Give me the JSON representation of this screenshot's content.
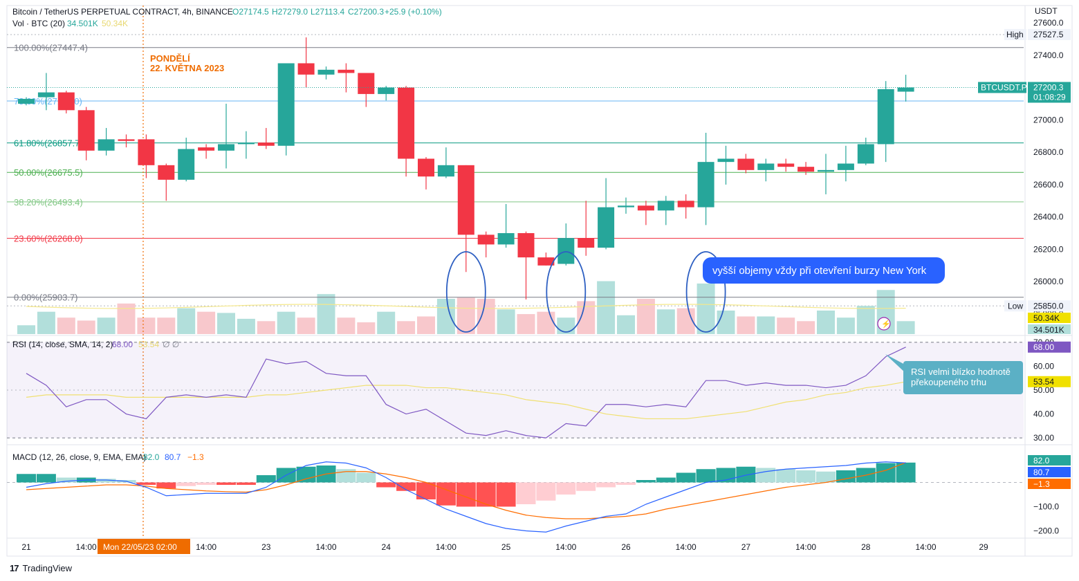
{
  "header": {
    "symbol_line": "Bitcoin / TetherUS PERPETUAL CONTRACT, 4h, BINANCE",
    "o": "O27174.5",
    "h": "H27279.0",
    "l": "L27113.4",
    "c": "C27200.3",
    "change": "+25.9 (+0.10%)",
    "vol_label": "Vol · BTC (20)",
    "vol_v1": "34.501K",
    "vol_v2": "50.34K",
    "rsi_label": "RSI (14, close, SMA, 14, 2)",
    "rsi_v1": "68.00",
    "rsi_v2": "53.54",
    "rsi_null": "∅  ∅",
    "macd_label": "MACD (12, 26, close, 9, EMA, EMA)",
    "macd_v1": "82.0",
    "macd_v2": "80.7",
    "macd_v3": "−1.3"
  },
  "footer": {
    "brand": "TradingView",
    "logo": "17"
  },
  "colors": {
    "up": "#26a69a",
    "down": "#f23645",
    "upVol": "#b2dfdb",
    "downVol": "#f8c8cc",
    "rsiLine": "#7e57c2",
    "rsiMa": "#f0e070",
    "macdLine": "#2962ff",
    "macdSignal": "#ff6d00",
    "accent": "#ef6c00"
  },
  "chart_data": {
    "type": "candlestick",
    "timeframe": "4h",
    "price_axis": {
      "unit": "USDT",
      "ylim": [
        25800,
        27600
      ],
      "ticks": [
        25800,
        26000,
        26200,
        26400,
        26600,
        26800,
        27000,
        27200,
        27400,
        27600
      ]
    },
    "candles": [
      {
        "o": 27100,
        "h": 27140,
        "l": 27090,
        "c": 27130
      },
      {
        "o": 27140,
        "h": 27290,
        "l": 27060,
        "c": 27170
      },
      {
        "o": 27170,
        "h": 27180,
        "l": 27040,
        "c": 27060
      },
      {
        "o": 27060,
        "h": 27080,
        "l": 26750,
        "c": 26810
      },
      {
        "o": 26810,
        "h": 26950,
        "l": 26780,
        "c": 26880
      },
      {
        "o": 26880,
        "h": 26910,
        "l": 26830,
        "c": 26870
      },
      {
        "o": 26880,
        "h": 26910,
        "l": 26640,
        "c": 26720
      },
      {
        "o": 26720,
        "h": 26730,
        "l": 26500,
        "c": 26630
      },
      {
        "o": 26630,
        "h": 26890,
        "l": 26620,
        "c": 26820
      },
      {
        "o": 26830,
        "h": 26850,
        "l": 26760,
        "c": 26810
      },
      {
        "o": 26810,
        "h": 27100,
        "l": 26700,
        "c": 26850
      },
      {
        "o": 26850,
        "h": 26930,
        "l": 26760,
        "c": 26860
      },
      {
        "o": 26860,
        "h": 26950,
        "l": 26820,
        "c": 26840
      },
      {
        "o": 26840,
        "h": 27340,
        "l": 26780,
        "c": 27350
      },
      {
        "o": 27350,
        "h": 27510,
        "l": 27200,
        "c": 27280
      },
      {
        "o": 27280,
        "h": 27330,
        "l": 27250,
        "c": 27310
      },
      {
        "o": 27310,
        "h": 27350,
        "l": 27170,
        "c": 27290
      },
      {
        "o": 27290,
        "h": 27290,
        "l": 27080,
        "c": 27160
      },
      {
        "o": 27160,
        "h": 27210,
        "l": 27120,
        "c": 27200
      },
      {
        "o": 27200,
        "h": 27210,
        "l": 26650,
        "c": 26760
      },
      {
        "o": 26760,
        "h": 26770,
        "l": 26570,
        "c": 26650
      },
      {
        "o": 26650,
        "h": 26830,
        "l": 26640,
        "c": 26720
      },
      {
        "o": 26720,
        "h": 26720,
        "l": 26060,
        "c": 26290
      },
      {
        "o": 26290,
        "h": 26310,
        "l": 26150,
        "c": 26230
      },
      {
        "o": 26230,
        "h": 26480,
        "l": 26210,
        "c": 26300
      },
      {
        "o": 26300,
        "h": 26310,
        "l": 25890,
        "c": 26150
      },
      {
        "o": 26150,
        "h": 26180,
        "l": 26100,
        "c": 26100
      },
      {
        "o": 26110,
        "h": 26360,
        "l": 26100,
        "c": 26270
      },
      {
        "o": 26270,
        "h": 26500,
        "l": 26160,
        "c": 26210
      },
      {
        "o": 26210,
        "h": 26640,
        "l": 26200,
        "c": 26460
      },
      {
        "o": 26460,
        "h": 26520,
        "l": 26420,
        "c": 26470
      },
      {
        "o": 26470,
        "h": 26500,
        "l": 26350,
        "c": 26440
      },
      {
        "o": 26440,
        "h": 26530,
        "l": 26350,
        "c": 26500
      },
      {
        "o": 26500,
        "h": 26540,
        "l": 26390,
        "c": 26460
      },
      {
        "o": 26460,
        "h": 26920,
        "l": 26350,
        "c": 26740
      },
      {
        "o": 26740,
        "h": 26840,
        "l": 26600,
        "c": 26760
      },
      {
        "o": 26760,
        "h": 26790,
        "l": 26670,
        "c": 26690
      },
      {
        "o": 26690,
        "h": 26760,
        "l": 26620,
        "c": 26730
      },
      {
        "o": 26730,
        "h": 26760,
        "l": 26680,
        "c": 26710
      },
      {
        "o": 26710,
        "h": 26740,
        "l": 26660,
        "c": 26680
      },
      {
        "o": 26680,
        "h": 26790,
        "l": 26540,
        "c": 26690
      },
      {
        "o": 26690,
        "h": 26840,
        "l": 26620,
        "c": 26730
      },
      {
        "o": 26730,
        "h": 26890,
        "l": 26720,
        "c": 26850
      },
      {
        "o": 26850,
        "h": 27240,
        "l": 26740,
        "c": 27190
      },
      {
        "o": 27174.5,
        "h": 27279,
        "l": 27113.4,
        "c": 27200.3
      }
    ],
    "volume": {
      "max": 100,
      "values": [
        15,
        38,
        28,
        23,
        28,
        52,
        28,
        28,
        44,
        38,
        36,
        26,
        22,
        38,
        28,
        68,
        28,
        20,
        38,
        22,
        30,
        60,
        62,
        60,
        42,
        34,
        38,
        28,
        56,
        90,
        32,
        60,
        42,
        44,
        86,
        40,
        30,
        30,
        28,
        22,
        40,
        28,
        48,
        75,
        22
      ],
      "highlight_circles": [
        22,
        27,
        34
      ]
    },
    "fibonacci": {
      "levels": [
        {
          "label": "100.00%(27447.4)",
          "price": 27447.4,
          "color": "#787b86"
        },
        {
          "label": "78.60%(27117.0)",
          "price": 27117.0,
          "color": "#64b5f6"
        },
        {
          "label": "61.80%(26857.7)",
          "price": 26857.7,
          "color": "#089981"
        },
        {
          "label": "50.00%(26675.5)",
          "price": 26675.5,
          "color": "#4caf50"
        },
        {
          "label": "38.20%(26493.4)",
          "price": 26493.4,
          "color": "#81c784"
        },
        {
          "label": "23.60%(26268.0)",
          "price": 26268.0,
          "color": "#f23645"
        },
        {
          "label": "0.00%(25903.7)",
          "price": 25903.7,
          "color": "#787b86"
        }
      ]
    },
    "price_tags": [
      {
        "label": "High",
        "value": "27527.5",
        "price": 27527.5
      },
      {
        "label": "Low",
        "value": "25850.0",
        "price": 25850.0
      },
      {
        "label": "BTCUSDT.P",
        "value": "27200.3",
        "sub": "01:08:29",
        "price": 27200.3
      }
    ],
    "volume_tags": [
      "50.34K",
      "34.501K"
    ],
    "date_marker": {
      "line1": "PONDĚLÍ",
      "line2": "22. KVĚTNA 2023",
      "axis_label": "Mon 22/05/23   02:00"
    },
    "x_axis_labels": [
      {
        "text": "21",
        "bar": 0
      },
      {
        "text": "14:00",
        "bar": 3
      },
      {
        "text": "14:00",
        "bar": 9
      },
      {
        "text": "23",
        "bar": 12
      },
      {
        "text": "14:00",
        "bar": 15
      },
      {
        "text": "24",
        "bar": 18
      },
      {
        "text": "14:00",
        "bar": 21
      },
      {
        "text": "25",
        "bar": 24
      },
      {
        "text": "14:00",
        "bar": 27
      },
      {
        "text": "26",
        "bar": 30
      },
      {
        "text": "14:00",
        "bar": 33
      },
      {
        "text": "27",
        "bar": 36
      },
      {
        "text": "14:00",
        "bar": 39
      },
      {
        "text": "28",
        "bar": 42
      },
      {
        "text": "14:00",
        "bar": 45
      },
      {
        "text": "29",
        "bar": 48
      }
    ],
    "annotations": [
      {
        "text": "vyšší objemy vždy při otevření burzy New York"
      },
      {
        "text": "RSI velmi blízko hodnotě překoupeného trhu"
      }
    ],
    "rsi": {
      "ylim": [
        28,
        72
      ],
      "ticks": [
        30,
        40,
        50,
        60,
        70
      ],
      "bands": [
        30,
        70
      ],
      "mid": 50,
      "values": [
        57,
        52,
        43,
        46,
        46,
        40,
        38,
        47,
        48,
        47,
        48,
        47,
        63,
        61,
        62,
        57,
        56,
        56,
        44,
        40,
        42,
        37,
        32,
        31,
        33,
        31,
        30,
        36,
        35,
        44,
        44,
        43,
        44,
        43,
        54,
        54,
        52,
        53,
        52,
        52,
        51,
        52,
        56,
        64,
        68
      ],
      "ma": [
        47,
        48,
        48,
        48,
        48,
        47,
        47,
        47,
        47,
        47,
        47,
        47,
        48,
        48,
        49,
        50,
        51,
        52,
        52,
        52,
        51,
        51,
        50,
        49,
        48,
        46,
        45,
        44,
        42,
        40,
        39,
        38,
        38,
        38,
        39,
        40,
        41,
        43,
        45,
        46,
        48,
        49,
        51,
        52,
        53.5
      ]
    },
    "macd": {
      "ylim": [
        -230,
        150
      ],
      "ticks": [
        -200,
        -100
      ],
      "hist": [
        35,
        35,
        20,
        20,
        15,
        10,
        -10,
        -25,
        -15,
        -10,
        -10,
        -10,
        30,
        60,
        65,
        70,
        55,
        40,
        -20,
        -35,
        -70,
        -95,
        -100,
        -100,
        -100,
        -90,
        -75,
        -50,
        -35,
        -20,
        -10,
        10,
        20,
        40,
        55,
        60,
        65,
        60,
        55,
        50,
        45,
        50,
        60,
        80,
        82
      ],
      "line": [
        -20,
        -5,
        5,
        10,
        10,
        5,
        -20,
        -55,
        -50,
        -45,
        -45,
        -45,
        -20,
        30,
        70,
        85,
        80,
        60,
        20,
        -30,
        -70,
        -110,
        -140,
        -170,
        -190,
        -200,
        -205,
        -180,
        -160,
        -140,
        -130,
        -90,
        -60,
        -30,
        0,
        10,
        30,
        45,
        55,
        60,
        65,
        70,
        80,
        85,
        80.7
      ],
      "signal": [
        -30,
        -25,
        -20,
        -15,
        -10,
        -10,
        -15,
        -25,
        -30,
        -35,
        -38,
        -40,
        -30,
        -10,
        15,
        35,
        45,
        45,
        35,
        20,
        0,
        -30,
        -60,
        -90,
        -115,
        -135,
        -145,
        -150,
        -150,
        -145,
        -140,
        -130,
        -110,
        -95,
        -80,
        -65,
        -50,
        -35,
        -20,
        -10,
        0,
        15,
        30,
        50,
        82
      ]
    },
    "right_axis_tags": {
      "rsi": [
        "68.00",
        "53.54"
      ],
      "macd": [
        "82.0",
        "80.7",
        "−1.3"
      ]
    },
    "axis_unit": "USDT"
  }
}
